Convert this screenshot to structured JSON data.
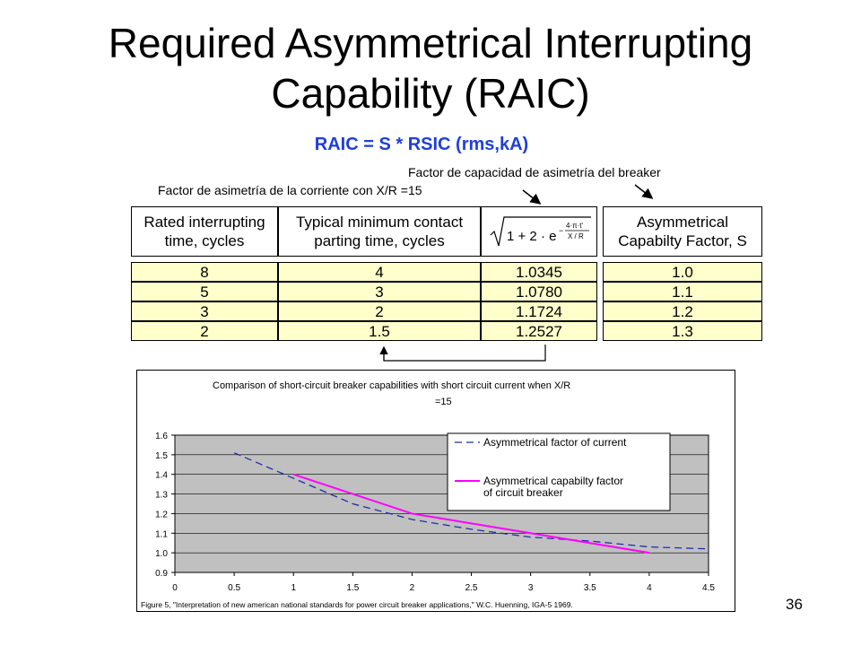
{
  "slide": {
    "title_line1": "Required Asymmetrical Interrupting",
    "title_line2": "Capability (RAIC)",
    "formula": "RAIC = S * RSIC (rms,kA)",
    "note_breaker": "Factor de capacidad de asimetría del breaker",
    "note_current": "Factor de asimetría de la corriente con X/R =15",
    "page_number": "36"
  },
  "table": {
    "headers": {
      "col1": [
        "Rated interrupting",
        "time, cycles"
      ],
      "col2": [
        "Typical minimum contact",
        "parting time, cycles"
      ],
      "col4": [
        "Asymmetrical",
        "Capabilty Factor, S"
      ]
    },
    "rows": [
      [
        "8",
        "4",
        "1.0345",
        "1.0"
      ],
      [
        "5",
        "3",
        "1.0780",
        "1.1"
      ],
      [
        "3",
        "2",
        "1.1724",
        "1.2"
      ],
      [
        "2",
        "1.5",
        "1.2527",
        "1.3"
      ]
    ]
  },
  "chart_data": {
    "type": "line",
    "title": "Comparison of short-circuit breaker capabilities with short circuit current when X/R =15",
    "xlabel": "",
    "ylabel": "",
    "xlim": [
      0,
      4.5
    ],
    "ylim": [
      0.9,
      1.6
    ],
    "xticks": [
      "0",
      "0.5",
      "1",
      "1.5",
      "2",
      "2.5",
      "3",
      "3.5",
      "4",
      "4.5"
    ],
    "yticks": [
      "0.9",
      "1.0",
      "1.1",
      "1.2",
      "1.3",
      "1.4",
      "1.5",
      "1.6"
    ],
    "grid": "horizontal",
    "legend_position": "top-right",
    "plot_background": "#c0c0c0",
    "series": [
      {
        "name": "Asymmetrical factor of current",
        "color": "#1f2fa8",
        "style": "dashed",
        "x": [
          0.5,
          1,
          1.5,
          2,
          2.5,
          3,
          3.5,
          4,
          4.5
        ],
        "y": [
          1.51,
          1.38,
          1.25,
          1.17,
          1.12,
          1.08,
          1.06,
          1.03,
          1.02
        ]
      },
      {
        "name": "Asymmetrical capabilty factor of circuit breaker",
        "color": "#ff00ff",
        "style": "solid",
        "x": [
          1,
          1.5,
          2,
          2.5,
          3,
          3.5,
          4
        ],
        "y": [
          1.4,
          1.3,
          1.2,
          1.15,
          1.1,
          1.05,
          1.0
        ]
      }
    ],
    "legend_lines": {
      "s1": [
        "Asymmetrical factor of current"
      ],
      "s2": [
        "Asymmetrical capabilty factor",
        "of circuit breaker"
      ]
    },
    "title_lines": [
      "Comparison of short-circuit breaker capabilities with short circuit current when X/R",
      "=15"
    ],
    "source_note": "Figure 5, \"Interpretation of new american national standards for power circuit breaker applications,\" W.C. Huenning, IGA-5 1969."
  }
}
